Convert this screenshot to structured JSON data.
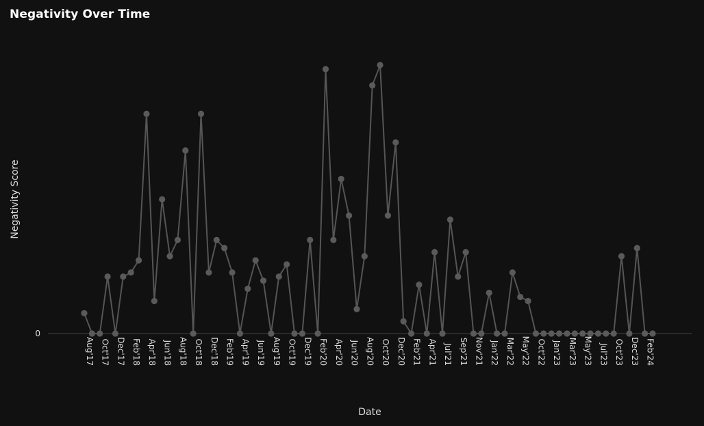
{
  "chart_data": {
    "type": "line",
    "title": "Negativity Over Time",
    "xlabel": "Date",
    "ylabel": "Negativity Score",
    "y_tick_labels": [
      "0"
    ],
    "y_tick_values": [
      0
    ],
    "ylim": [
      0,
      67
    ],
    "grid": false,
    "legend": "none",
    "colors": {
      "background": "#111111",
      "line": "#555555",
      "marker": "#5a5a5a",
      "axis": "#3a3a3a",
      "text": "#dedede"
    },
    "x_tick_labels": [
      "Aug'17",
      "Oct'17",
      "Dec'17",
      "Feb'18",
      "Apr'18",
      "Jun'18",
      "Aug'18",
      "Oct'18",
      "Dec'18",
      "Feb'19",
      "Apr'19",
      "Jun'19",
      "Aug'19",
      "Oct'19",
      "Dec'19",
      "Feb'20",
      "Apr'20",
      "Jun'20",
      "Aug'20",
      "Oct'20",
      "Dec'20",
      "Feb'21",
      "Apr'21",
      "Jul'21",
      "Sep'21",
      "Nov'21",
      "Jan'22",
      "Mar'22",
      "May'22",
      "Oct'22",
      "Jan'23",
      "Mar'23",
      "May'23",
      "Jul'23",
      "Oct'23",
      "Dec'23",
      "Feb'24"
    ],
    "x_tick_indices": [
      0,
      2,
      4,
      6,
      8,
      10,
      12,
      14,
      16,
      18,
      20,
      22,
      24,
      26,
      28,
      30,
      32,
      34,
      36,
      38,
      40,
      42,
      44,
      46,
      48,
      50,
      52,
      54,
      56,
      58,
      60,
      62,
      64,
      66,
      68,
      70,
      72
    ],
    "series": [
      {
        "name": "Negativity Score",
        "values": [
          5,
          0,
          0,
          14,
          0,
          14,
          15,
          18,
          54,
          8,
          33,
          19,
          23,
          45,
          0,
          54,
          15,
          23,
          21,
          15,
          0,
          11,
          18,
          13,
          0,
          14,
          17,
          0,
          0,
          23,
          0,
          65,
          23,
          38,
          29,
          6,
          19,
          61,
          66,
          29,
          47,
          3,
          0,
          12,
          0,
          20,
          0,
          28,
          14,
          20,
          0,
          0,
          10,
          0,
          0,
          15,
          9,
          8,
          0,
          0,
          0,
          0,
          0,
          0,
          0,
          0,
          0,
          0,
          0,
          19,
          0,
          21,
          0,
          0
        ]
      }
    ]
  }
}
